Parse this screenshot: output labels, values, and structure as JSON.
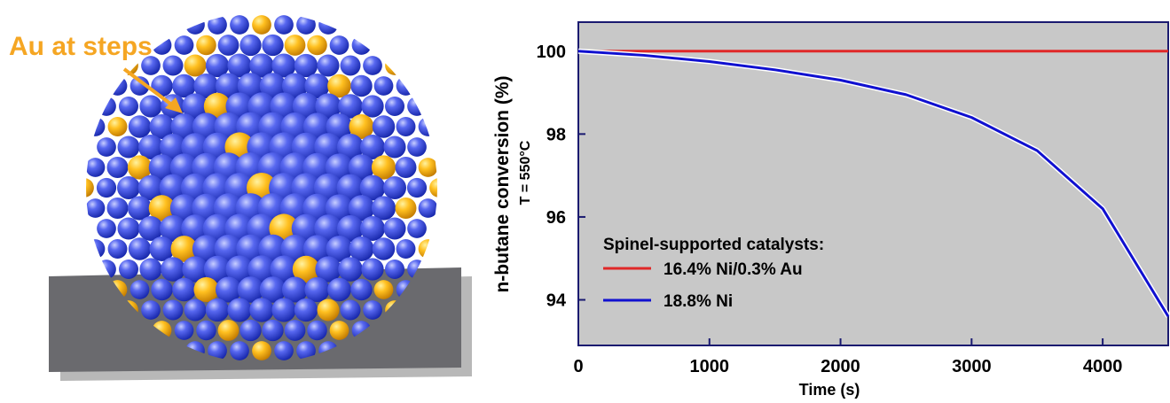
{
  "illustration": {
    "label": "Au at steps"
  },
  "chart_data": {
    "type": "line",
    "y_label": "n-butane conversion (%)",
    "annotation": "T = 550°C",
    "x_label": "Time (s)",
    "legend_title": "Spinel-supported catalysts:",
    "x": [
      0,
      500,
      1000,
      1500,
      2000,
      2500,
      3000,
      3500,
      4000,
      4500
    ],
    "series": [
      {
        "name": "16.4% Ni/0.3% Au",
        "color": "#e02828",
        "values": [
          100,
          100,
          100,
          100,
          100,
          100,
          100,
          100,
          100,
          100
        ]
      },
      {
        "name": "18.8% Ni",
        "color": "#1010d0",
        "values": [
          100,
          99.9,
          99.75,
          99.55,
          99.3,
          98.95,
          98.4,
          97.6,
          96.2,
          93.6
        ]
      }
    ],
    "xlim": [
      0,
      4500
    ],
    "ylim": [
      92.9,
      100.7
    ],
    "xticks": [
      0,
      1000,
      2000,
      3000,
      4000
    ],
    "yticks": [
      94,
      96,
      98,
      100
    ],
    "background": "#c8c8c8"
  }
}
